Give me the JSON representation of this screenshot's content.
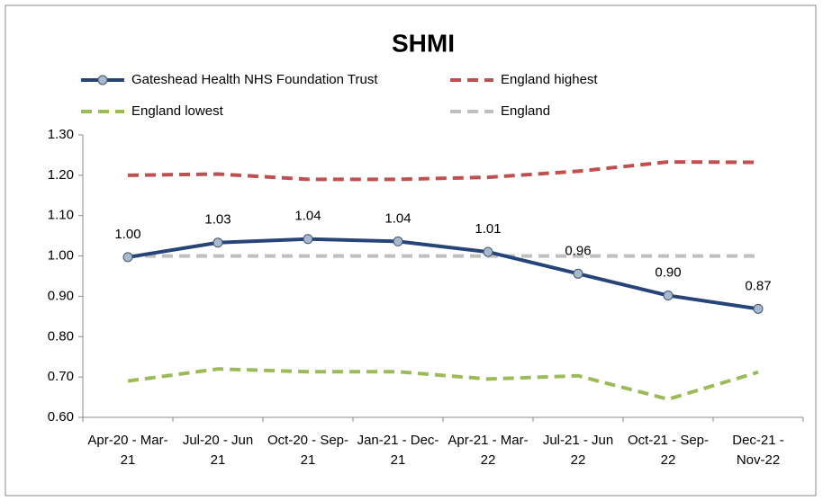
{
  "chart_data": {
    "type": "line",
    "title": "SHMI",
    "categories": [
      "Apr-20 - Mar-21",
      "Jul-20 - Jun 21",
      "Oct-20 - Sep-21",
      "Jan-21 - Dec-21",
      "Apr-21 - Mar-22",
      "Jul-21 - Jun 22",
      "Oct-21 - Sep-22",
      "Dec-21 - Nov-22"
    ],
    "series": [
      {
        "name": "Gateshead Health NHS Foundation Trust",
        "color": "#264478",
        "marker": true,
        "values": [
          0.997,
          1.033,
          1.042,
          1.036,
          1.01,
          0.956,
          0.902,
          0.869
        ],
        "value_labels": [
          "1.00",
          "1.03",
          "1.04",
          "1.04",
          "1.01",
          "0.96",
          "0.90",
          "0.87"
        ]
      },
      {
        "name": "England highest",
        "color": "#c0504d",
        "dashed": true,
        "values": [
          1.2,
          1.203,
          1.19,
          1.19,
          1.195,
          1.21,
          1.233,
          1.232
        ]
      },
      {
        "name": "England lowest",
        "color": "#9bbb59",
        "dashed": true,
        "values": [
          0.69,
          0.72,
          0.713,
          0.713,
          0.695,
          0.703,
          0.645,
          0.712
        ]
      },
      {
        "name": "England",
        "color": "#bfbfbf",
        "dashed": true,
        "values": [
          1.0,
          1.0,
          1.0,
          1.0,
          1.0,
          1.0,
          1.0,
          1.0
        ]
      }
    ],
    "ylim": [
      0.6,
      1.3
    ],
    "yticks": [
      {
        "value": 0.6,
        "label": "0.60"
      },
      {
        "value": 0.7,
        "label": "0.70"
      },
      {
        "value": 0.8,
        "label": "0.80"
      },
      {
        "value": 0.9,
        "label": "0.90"
      },
      {
        "value": 1.0,
        "label": "1.00"
      },
      {
        "value": 1.1,
        "label": "1.10"
      },
      {
        "value": 1.2,
        "label": "1.20"
      },
      {
        "value": 1.3,
        "label": "1.30"
      }
    ],
    "grid": false,
    "legend": "top"
  }
}
